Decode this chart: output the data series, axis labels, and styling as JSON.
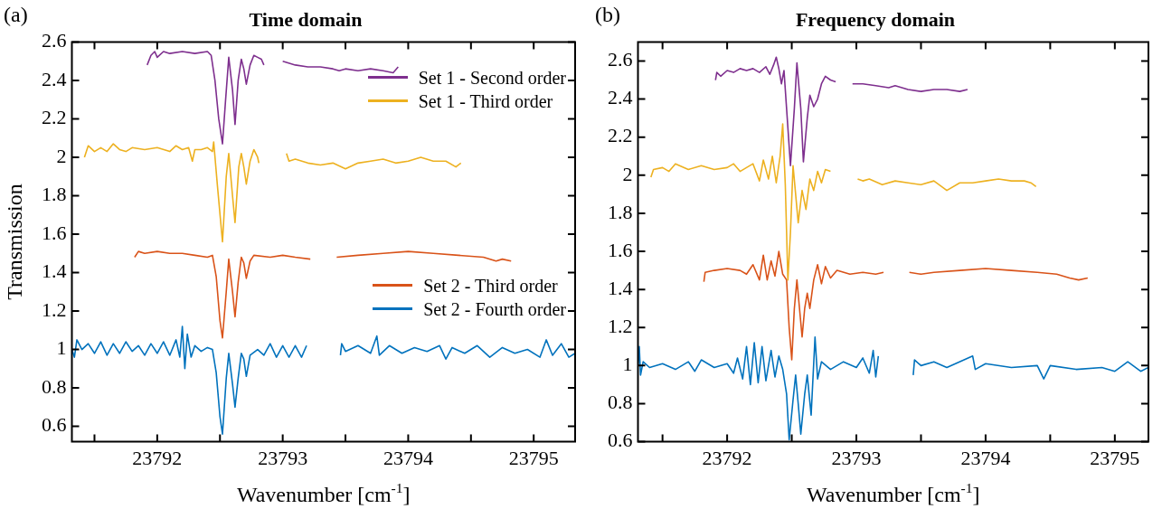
{
  "chart_data": [
    {
      "type": "line",
      "title": "Time domain",
      "xlabel": "Wavenumber [cm$^{-1}$]",
      "ylabel": "Transmission",
      "annotations": [
        "(a)"
      ],
      "legend": "right",
      "grid": false,
      "marker": "none",
      "line_style": "solid",
      "xlim": [
        23791.32,
        23795.33
      ],
      "xticks": [
        {
          "value": 23791.5,
          "label": null
        },
        23792,
        {
          "value": 23792.5,
          "label": null
        },
        23793,
        {
          "value": 23793.5,
          "label": null
        },
        23794,
        {
          "value": 23794.5,
          "label": null
        },
        23795
      ],
      "ylim": [
        0.52,
        2.6
      ],
      "yticks": [
        0.6,
        0.8,
        1,
        1.2,
        1.4,
        1.6,
        1.8,
        2,
        2.2,
        2.4,
        2.6
      ],
      "series": [
        {
          "name": "Set 1 - Second order",
          "color": "#7e2f8e",
          "x": [
            23791.92,
            23791.95,
            23791.98,
            23792.0,
            23792.05,
            23792.1,
            23792.2,
            23792.3,
            23792.4,
            23792.43,
            23792.46,
            23792.49,
            23792.52,
            23792.545,
            23792.57,
            23792.6,
            23792.62,
            23792.645,
            23792.67,
            23792.69,
            23792.71,
            23792.74,
            23792.77,
            23792.8,
            23792.83,
            23792.85,
            23792.92,
            23793.0,
            23793.1,
            23793.2,
            23793.3,
            23793.4,
            23793.45,
            23793.5,
            23793.6,
            23793.7,
            23793.8,
            23793.88,
            23793.92
          ],
          "values": [
            2.48,
            2.53,
            2.55,
            2.52,
            2.55,
            2.54,
            2.55,
            2.54,
            2.55,
            2.53,
            2.4,
            2.2,
            2.07,
            2.3,
            2.52,
            2.35,
            2.17,
            2.4,
            2.51,
            2.46,
            2.38,
            2.48,
            2.53,
            2.52,
            2.51,
            2.48,
            null,
            2.5,
            2.48,
            2.47,
            2.47,
            2.46,
            2.45,
            2.46,
            2.45,
            2.46,
            2.45,
            2.44,
            2.47
          ]
        },
        {
          "name": "Set 1 - Third order",
          "color": "#edb120",
          "x": [
            23791.42,
            23791.45,
            23791.5,
            23791.55,
            23791.6,
            23791.65,
            23791.7,
            23791.75,
            23791.8,
            23791.9,
            23792.0,
            23792.1,
            23792.15,
            23792.2,
            23792.25,
            23792.28,
            23792.3,
            23792.35,
            23792.4,
            23792.44,
            23792.45,
            23792.48,
            23792.52,
            23792.55,
            23792.57,
            23792.6,
            23792.62,
            23792.65,
            23792.67,
            23792.69,
            23792.71,
            23792.74,
            23792.77,
            23792.8,
            23792.81,
            23792.92,
            23793.03,
            23793.05,
            23793.1,
            23793.2,
            23793.3,
            23793.4,
            23793.5,
            23793.6,
            23793.7,
            23793.8,
            23793.9,
            23794.0,
            23794.1,
            23794.2,
            23794.3,
            23794.38,
            23794.42
          ],
          "values": [
            2.0,
            2.06,
            2.03,
            2.05,
            2.03,
            2.07,
            2.04,
            2.03,
            2.05,
            2.04,
            2.05,
            2.03,
            2.06,
            2.04,
            2.05,
            1.98,
            2.04,
            2.04,
            2.05,
            2.03,
            2.08,
            1.85,
            1.56,
            1.9,
            2.02,
            1.8,
            1.66,
            1.95,
            2.02,
            1.95,
            1.86,
            1.98,
            2.04,
            2.0,
            1.97,
            null,
            2.02,
            1.98,
            1.99,
            1.97,
            1.96,
            1.97,
            1.94,
            1.97,
            1.98,
            1.99,
            1.97,
            1.98,
            2.0,
            1.98,
            1.98,
            1.95,
            1.97
          ]
        },
        {
          "name": "Set 2 - Third order",
          "color": "#d95319",
          "x": [
            23791.82,
            23791.85,
            23791.9,
            23792.0,
            23792.1,
            23792.2,
            23792.3,
            23792.4,
            23792.44,
            23792.47,
            23792.5,
            23792.52,
            23792.55,
            23792.57,
            23792.6,
            23792.62,
            23792.645,
            23792.67,
            23792.69,
            23792.71,
            23792.74,
            23792.77,
            23792.9,
            23793.0,
            23793.1,
            23793.22,
            23793.3,
            23793.43,
            23793.6,
            23793.8,
            23794.0,
            23794.2,
            23794.4,
            23794.6,
            23794.7,
            23794.75,
            23794.82
          ],
          "values": [
            1.48,
            1.51,
            1.5,
            1.51,
            1.5,
            1.5,
            1.49,
            1.48,
            1.49,
            1.38,
            1.15,
            1.06,
            1.3,
            1.47,
            1.3,
            1.17,
            1.35,
            1.48,
            1.45,
            1.37,
            1.46,
            1.49,
            1.48,
            1.49,
            1.48,
            1.47,
            null,
            1.48,
            1.49,
            1.5,
            1.51,
            1.5,
            1.49,
            1.48,
            1.46,
            1.47,
            1.46
          ]
        },
        {
          "name": "Set 2 - Fourth order",
          "color": "#0072bd",
          "x": [
            23791.32,
            23791.34,
            23791.36,
            23791.4,
            23791.45,
            23791.5,
            23791.55,
            23791.6,
            23791.65,
            23791.7,
            23791.75,
            23791.8,
            23791.85,
            23791.9,
            23791.95,
            23792.0,
            23792.05,
            23792.1,
            23792.15,
            23792.18,
            23792.2,
            23792.22,
            23792.24,
            23792.27,
            23792.3,
            23792.35,
            23792.4,
            23792.44,
            23792.47,
            23792.5,
            23792.52,
            23792.55,
            23792.57,
            23792.6,
            23792.62,
            23792.645,
            23792.67,
            23792.69,
            23792.71,
            23792.74,
            23792.8,
            23792.85,
            23792.9,
            23792.95,
            23793.0,
            23793.05,
            23793.1,
            23793.15,
            23793.19,
            23793.3,
            23793.46,
            23793.47,
            23793.5,
            23793.6,
            23793.7,
            23793.75,
            23793.77,
            23793.85,
            23793.95,
            23794.05,
            23794.15,
            23794.25,
            23794.3,
            23794.35,
            23794.45,
            23794.55,
            23794.65,
            23794.75,
            23794.85,
            23794.95,
            23795.05,
            23795.1,
            23795.15,
            23795.22,
            23795.28,
            23795.33
          ],
          "values": [
            1.0,
            0.96,
            1.05,
            1.0,
            1.03,
            0.98,
            1.04,
            0.97,
            1.03,
            0.98,
            1.04,
            0.99,
            1.02,
            0.97,
            1.03,
            0.98,
            1.04,
            0.97,
            1.05,
            0.96,
            1.12,
            0.9,
            1.08,
            0.96,
            1.02,
            0.99,
            1.01,
            1.0,
            0.88,
            0.65,
            0.56,
            0.85,
            0.98,
            0.82,
            0.7,
            0.85,
            0.98,
            0.95,
            0.86,
            0.97,
            1.0,
            0.97,
            1.03,
            0.96,
            1.02,
            0.96,
            1.02,
            0.96,
            1.02,
            null,
            0.97,
            1.03,
            0.99,
            1.02,
            0.98,
            1.07,
            0.97,
            1.02,
            0.98,
            1.01,
            0.99,
            1.02,
            0.95,
            1.01,
            0.98,
            1.02,
            0.96,
            1.01,
            0.98,
            1.0,
            0.96,
            1.05,
            0.97,
            1.03,
            0.96,
            0.98
          ]
        }
      ]
    },
    {
      "type": "line",
      "title": "Frequency domain",
      "xlabel": "Wavenumber [cm$^{-1}$]",
      "annotations": [
        "(b)"
      ],
      "grid": false,
      "marker": "none",
      "line_style": "solid",
      "xlim": [
        23791.31,
        23795.26
      ],
      "xticks": [
        {
          "value": 23791.5,
          "label": null
        },
        23792,
        {
          "value": 23792.5,
          "label": null
        },
        23793,
        {
          "value": 23793.5,
          "label": null
        },
        23794,
        {
          "value": 23794.5,
          "label": null
        },
        23795
      ],
      "ylim": [
        0.6,
        2.7
      ],
      "yticks": [
        0.6,
        0.8,
        1,
        1.2,
        1.4,
        1.6,
        1.8,
        2,
        2.2,
        2.4,
        2.6
      ],
      "series": [
        {
          "color": "#7e2f8e",
          "x": [
            23791.91,
            23791.92,
            23791.95,
            23792.0,
            23792.05,
            23792.1,
            23792.15,
            23792.2,
            23792.25,
            23792.3,
            23792.33,
            23792.36,
            23792.38,
            23792.4,
            23792.42,
            23792.44,
            23792.46,
            23792.49,
            23792.52,
            23792.54,
            23792.57,
            23792.59,
            23792.62,
            23792.64,
            23792.67,
            23792.7,
            23792.73,
            23792.76,
            23792.8,
            23792.84,
            23792.9,
            23792.97,
            23793.05,
            23793.15,
            23793.25,
            23793.3,
            23793.4,
            23793.5,
            23793.6,
            23793.7,
            23793.8,
            23793.86
          ],
          "values": [
            2.5,
            2.54,
            2.52,
            2.55,
            2.54,
            2.56,
            2.55,
            2.56,
            2.54,
            2.57,
            2.53,
            2.58,
            2.62,
            2.56,
            2.48,
            2.55,
            2.35,
            2.05,
            2.35,
            2.59,
            2.35,
            2.07,
            2.3,
            2.42,
            2.36,
            2.4,
            2.48,
            2.52,
            2.5,
            2.49,
            null,
            2.48,
            2.48,
            2.47,
            2.46,
            2.47,
            2.45,
            2.44,
            2.45,
            2.45,
            2.44,
            2.45
          ]
        },
        {
          "color": "#edb120",
          "x": [
            23791.41,
            23791.43,
            23791.5,
            23791.55,
            23791.6,
            23791.7,
            23791.8,
            23791.9,
            23792.0,
            23792.05,
            23792.1,
            23792.15,
            23792.2,
            23792.25,
            23792.28,
            23792.32,
            23792.35,
            23792.38,
            23792.41,
            23792.43,
            23792.45,
            23792.47,
            23792.49,
            23792.51,
            23792.53,
            23792.55,
            23792.58,
            23792.61,
            23792.64,
            23792.67,
            23792.7,
            23792.73,
            23792.76,
            23792.8,
            23792.9,
            23793.01,
            23793.05,
            23793.1,
            23793.2,
            23793.3,
            23793.4,
            23793.5,
            23793.6,
            23793.7,
            23793.8,
            23793.9,
            23794.0,
            23794.1,
            23794.2,
            23794.3,
            23794.35,
            23794.39
          ],
          "values": [
            1.99,
            2.03,
            2.04,
            2.02,
            2.06,
            2.03,
            2.05,
            2.03,
            2.04,
            2.06,
            2.02,
            2.04,
            2.06,
            1.97,
            2.08,
            1.98,
            2.1,
            1.96,
            2.1,
            2.27,
            1.95,
            1.45,
            1.7,
            2.05,
            1.9,
            1.75,
            1.92,
            1.82,
            1.98,
            1.92,
            2.02,
            1.96,
            2.03,
            2.02,
            null,
            1.98,
            1.97,
            1.98,
            1.95,
            1.97,
            1.96,
            1.95,
            1.97,
            1.92,
            1.96,
            1.96,
            1.97,
            1.98,
            1.97,
            1.97,
            1.96,
            1.94
          ]
        },
        {
          "color": "#d95319",
          "x": [
            23791.82,
            23791.83,
            23791.9,
            23792.0,
            23792.1,
            23792.15,
            23792.2,
            23792.25,
            23792.28,
            23792.31,
            23792.34,
            23792.37,
            23792.4,
            23792.43,
            23792.46,
            23792.48,
            23792.5,
            23792.52,
            23792.54,
            23792.56,
            23792.58,
            23792.6,
            23792.62,
            23792.64,
            23792.67,
            23792.7,
            23792.73,
            23792.76,
            23792.8,
            23792.85,
            23792.95,
            23793.05,
            23793.15,
            23793.21,
            23793.3,
            23793.41,
            23793.5,
            23793.6,
            23793.8,
            23794.0,
            23794.2,
            23794.4,
            23794.55,
            23794.65,
            23794.72,
            23794.79
          ],
          "values": [
            1.44,
            1.49,
            1.5,
            1.51,
            1.5,
            1.48,
            1.53,
            1.45,
            1.58,
            1.45,
            1.55,
            1.47,
            1.6,
            1.48,
            1.45,
            1.2,
            1.03,
            1.3,
            1.45,
            1.3,
            1.15,
            1.3,
            1.38,
            1.3,
            1.45,
            1.53,
            1.43,
            1.52,
            1.46,
            1.5,
            1.48,
            1.49,
            1.48,
            1.49,
            null,
            1.49,
            1.48,
            1.49,
            1.5,
            1.51,
            1.5,
            1.49,
            1.48,
            1.46,
            1.45,
            1.46
          ]
        },
        {
          "color": "#0072bd",
          "x": [
            23791.31,
            23791.32,
            23791.33,
            23791.35,
            23791.4,
            23791.5,
            23791.6,
            23791.7,
            23791.75,
            23791.8,
            23791.9,
            23792.0,
            23792.05,
            23792.08,
            23792.12,
            23792.15,
            23792.18,
            23792.21,
            23792.24,
            23792.27,
            23792.3,
            23792.34,
            23792.37,
            23792.4,
            23792.43,
            23792.46,
            23792.48,
            23792.51,
            23792.53,
            23792.55,
            23792.57,
            23792.6,
            23792.62,
            23792.65,
            23792.68,
            23792.7,
            23792.73,
            23792.8,
            23792.9,
            23793.0,
            23793.05,
            23793.1,
            23793.13,
            23793.15,
            23793.17,
            23793.3,
            23793.44,
            23793.45,
            23793.5,
            23793.6,
            23793.7,
            23793.9,
            23793.92,
            23794.0,
            23794.2,
            23794.4,
            23794.45,
            23794.5,
            23794.7,
            23794.9,
            23795.0,
            23795.1,
            23795.2,
            23795.26
          ],
          "values": [
            1.0,
            1.1,
            0.95,
            1.02,
            0.99,
            1.01,
            0.98,
            1.02,
            0.97,
            1.03,
            0.99,
            1.01,
            0.96,
            1.04,
            0.93,
            1.1,
            0.9,
            1.12,
            0.91,
            1.1,
            0.92,
            1.08,
            0.94,
            1.05,
            0.98,
            0.85,
            0.61,
            0.82,
            0.95,
            0.8,
            0.64,
            0.85,
            0.95,
            0.74,
            1.15,
            0.93,
            1.02,
            0.98,
            1.02,
            0.99,
            1.04,
            0.96,
            1.08,
            0.94,
            1.05,
            null,
            0.95,
            1.03,
            1.0,
            1.02,
            0.99,
            1.05,
            0.98,
            1.01,
            0.99,
            1.0,
            0.93,
            1.0,
            0.98,
            0.99,
            0.97,
            1.02,
            0.97,
            0.99
          ]
        }
      ]
    }
  ]
}
